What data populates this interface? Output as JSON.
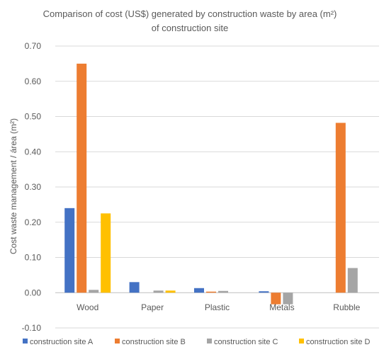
{
  "chart_data": {
    "type": "bar",
    "title": "Comparison of cost (US$) generated by construction waste by area (m²)",
    "title_line2": "of construction site",
    "ylabel": "Cost waste management / área (m²)",
    "xlabel": "",
    "ylim": [
      -0.1,
      0.7
    ],
    "ytick_step": 0.1,
    "yticks": [
      "-0.10",
      "0.00",
      "0.10",
      "0.20",
      "0.30",
      "0.40",
      "0.50",
      "0.60",
      "0.70"
    ],
    "grid": true,
    "legend_position": "bottom",
    "categories": [
      "Wood",
      "Paper",
      "Plastic",
      "Metals",
      "Rubble"
    ],
    "series": [
      {
        "name": "construction site A",
        "color": "#4472C4",
        "values": [
          0.24,
          0.03,
          0.013,
          0.004,
          0.0
        ]
      },
      {
        "name": "construction site B",
        "color": "#ED7D31",
        "values": [
          0.65,
          0.0,
          0.003,
          -0.033,
          0.482
        ]
      },
      {
        "name": "construction site C",
        "color": "#A5A5A5",
        "values": [
          0.008,
          0.006,
          0.005,
          -0.033,
          0.07
        ]
      },
      {
        "name": "construction site D",
        "color": "#FFC000",
        "values": [
          0.225,
          0.006,
          0.0,
          0.0,
          0.0
        ]
      }
    ]
  }
}
